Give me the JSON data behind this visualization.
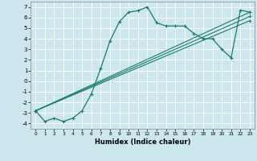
{
  "xlabel": "Humidex (Indice chaleur)",
  "bg_color": "#cce8ee",
  "grid_color": "#ffffff",
  "line_color": "#1a7a6e",
  "xlim": [
    -0.5,
    23.5
  ],
  "ylim": [
    -4.5,
    7.5
  ],
  "xticks": [
    0,
    1,
    2,
    3,
    4,
    5,
    6,
    7,
    8,
    9,
    10,
    11,
    12,
    13,
    14,
    15,
    16,
    17,
    18,
    19,
    20,
    21,
    22,
    23
  ],
  "yticks": [
    -4,
    -3,
    -2,
    -1,
    0,
    1,
    2,
    3,
    4,
    5,
    6,
    7
  ],
  "series": [
    [
      0,
      -2.8
    ],
    [
      1,
      -3.8
    ],
    [
      2,
      -3.5
    ],
    [
      3,
      -3.8
    ],
    [
      4,
      -3.5
    ],
    [
      5,
      -2.8
    ],
    [
      6,
      -1.2
    ],
    [
      7,
      1.2
    ],
    [
      8,
      3.8
    ],
    [
      9,
      5.6
    ],
    [
      10,
      6.5
    ],
    [
      11,
      6.65
    ],
    [
      12,
      7.0
    ],
    [
      13,
      5.5
    ],
    [
      14,
      5.2
    ],
    [
      15,
      5.2
    ],
    [
      16,
      5.2
    ],
    [
      17,
      4.5
    ],
    [
      18,
      4.0
    ],
    [
      19,
      4.0
    ],
    [
      20,
      3.0
    ],
    [
      21,
      2.2
    ],
    [
      22,
      6.7
    ],
    [
      23,
      6.5
    ]
  ],
  "linear_lines": [
    [
      [
        0,
        -2.8
      ],
      [
        23,
        6.5
      ]
    ],
    [
      [
        0,
        -2.8
      ],
      [
        23,
        6.1
      ]
    ],
    [
      [
        0,
        -2.8
      ],
      [
        23,
        5.7
      ]
    ]
  ]
}
